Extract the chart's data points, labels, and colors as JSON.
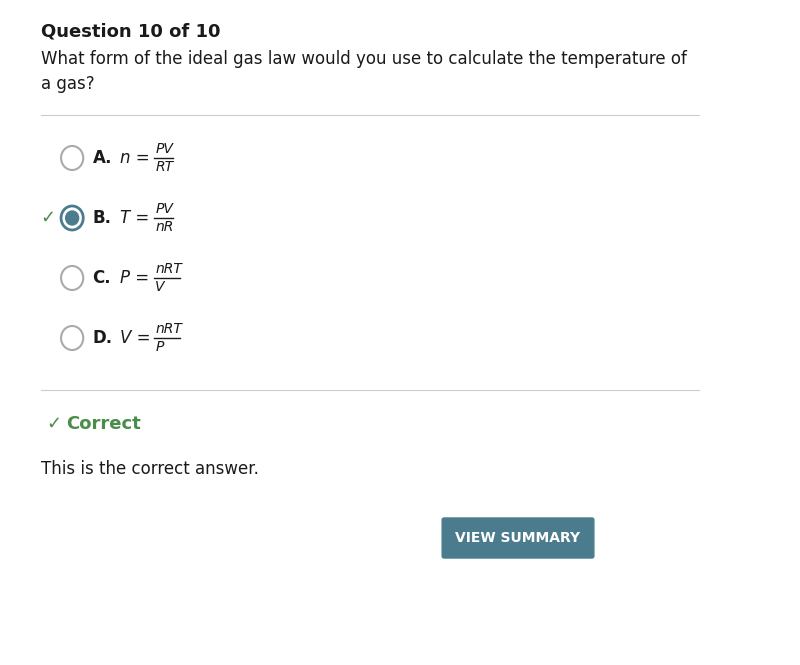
{
  "title": "Question 10 of 10",
  "question": "What form of the ideal gas law would you use to calculate the temperature of\na gas?",
  "options": [
    {
      "label": "A.",
      "var": "n",
      "numerator": "PV",
      "denominator": "RT",
      "selected": false,
      "correct": false
    },
    {
      "label": "B.",
      "var": "T",
      "numerator": "PV",
      "denominator": "nR",
      "selected": true,
      "correct": true
    },
    {
      "label": "C.",
      "var": "P",
      "numerator": "nRT",
      "denominator": "V",
      "selected": false,
      "correct": false
    },
    {
      "label": "D.",
      "var": "V",
      "numerator": "nRT",
      "denominator": "P",
      "selected": false,
      "correct": false
    }
  ],
  "correct_text": "Correct",
  "answer_text": "This is the correct answer.",
  "button_text": "VIEW SUMMARY",
  "button_color": "#4a7c8e",
  "button_text_color": "#ffffff",
  "check_color": "#4a8c4a",
  "separator_color": "#cccccc",
  "bg_color": "#ffffff",
  "title_fontsize": 13,
  "question_fontsize": 12,
  "option_fontsize": 12
}
